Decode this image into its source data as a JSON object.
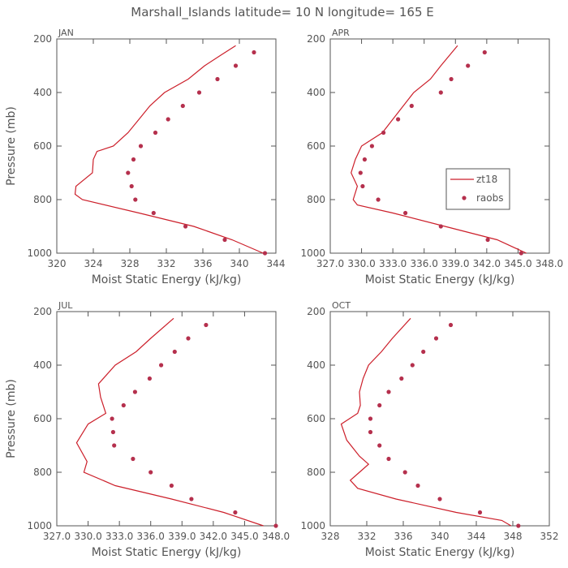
{
  "title": "Marshall_Islands  latitude= 10 N longitude= 165 E",
  "legend": {
    "model_label": "zt18",
    "obs_label": "raobs"
  },
  "colors": {
    "line": "#cc1f2a",
    "obs": "#b5304d",
    "axis": "#555555"
  },
  "chart_data": [
    {
      "type": "line",
      "panel": "JAN",
      "xlabel": "Moist Static Energy (kJ/kg)",
      "ylabel": "Pressure (mb)",
      "xlim": [
        320,
        344
      ],
      "ylim": [
        1000,
        200
      ],
      "x_ticks": [
        320,
        324,
        328,
        332,
        336,
        340,
        344
      ],
      "x_tick_labels": [
        "320",
        "324",
        "328",
        "332",
        "336",
        "340",
        "344"
      ],
      "y_ticks": [
        200,
        400,
        600,
        800,
        1000
      ],
      "y_tick_labels": [
        "200",
        "400",
        "600",
        "800",
        "1000"
      ],
      "series": [
        {
          "name": "zt18",
          "pressure": [
            225,
            260,
            300,
            350,
            400,
            450,
            500,
            550,
            600,
            620,
            650,
            700,
            750,
            780,
            800,
            850,
            900,
            950,
            1000
          ],
          "mse": [
            339.6,
            338.0,
            336.2,
            334.4,
            331.8,
            330.2,
            329.0,
            327.8,
            326.2,
            324.4,
            324.0,
            323.9,
            322.1,
            322.0,
            322.8,
            329.0,
            335.0,
            339.2,
            342.6
          ]
        },
        {
          "name": "raobs",
          "pressure": [
            250,
            300,
            350,
            400,
            450,
            500,
            550,
            600,
            650,
            700,
            750,
            800,
            850,
            900,
            950,
            1000
          ],
          "mse": [
            341.6,
            339.6,
            337.6,
            335.6,
            333.8,
            332.2,
            330.8,
            329.2,
            328.4,
            327.8,
            328.2,
            328.6,
            330.6,
            334.1,
            338.4,
            342.8
          ]
        }
      ]
    },
    {
      "type": "line",
      "panel": "APR",
      "xlabel": "Moist Static Energy (kJ/kg)",
      "ylabel": "",
      "xlim": [
        327.0,
        348.0
      ],
      "ylim": [
        1000,
        200
      ],
      "x_ticks": [
        327.0,
        330.0,
        333.0,
        336.0,
        339.0,
        342.0,
        345.0,
        348.0
      ],
      "x_tick_labels": [
        "327.0",
        "330.0",
        "333.0",
        "336.0",
        "339.0",
        "342.0",
        "345.0",
        "348.0"
      ],
      "y_ticks": [
        200,
        400,
        600,
        800,
        1000
      ],
      "y_tick_labels": [
        "200",
        "400",
        "600",
        "800",
        "1000"
      ],
      "series": [
        {
          "name": "zt18",
          "pressure": [
            225,
            300,
            350,
            400,
            450,
            500,
            550,
            580,
            600,
            650,
            700,
            750,
            800,
            820,
            850,
            900,
            950,
            1000
          ],
          "mse": [
            339.2,
            337.6,
            336.6,
            335.0,
            334.0,
            333.0,
            332.0,
            330.8,
            330.0,
            329.4,
            329.0,
            329.6,
            329.2,
            329.6,
            333.0,
            338.0,
            343.0,
            345.8
          ]
        },
        {
          "name": "raobs",
          "pressure": [
            250,
            300,
            350,
            400,
            450,
            500,
            550,
            600,
            650,
            700,
            750,
            800,
            850,
            900,
            950,
            1000
          ],
          "mse": [
            341.8,
            340.2,
            338.6,
            337.6,
            334.8,
            333.5,
            332.1,
            331.0,
            330.3,
            329.9,
            330.1,
            331.6,
            334.2,
            337.6,
            342.1,
            345.3
          ]
        }
      ]
    },
    {
      "type": "line",
      "panel": "JUL",
      "xlabel": "Moist Static Energy (kJ/kg)",
      "ylabel": "Pressure (mb)",
      "xlim": [
        327.0,
        348.0
      ],
      "ylim": [
        1000,
        200
      ],
      "x_ticks": [
        327.0,
        330.0,
        333.0,
        336.0,
        339.0,
        342.0,
        345.0,
        348.0
      ],
      "x_tick_labels": [
        "327.0",
        "330.0",
        "333.0",
        "336.0",
        "339.0",
        "342.0",
        "345.0",
        "348.0"
      ],
      "y_ticks": [
        200,
        400,
        600,
        800,
        1000
      ],
      "y_tick_labels": [
        "200",
        "400",
        "600",
        "800",
        "1000"
      ],
      "series": [
        {
          "name": "zt18",
          "pressure": [
            225,
            300,
            350,
            400,
            470,
            520,
            580,
            620,
            690,
            760,
            800,
            850,
            900,
            950,
            1000
          ],
          "mse": [
            338.2,
            336.0,
            334.6,
            332.6,
            331.0,
            331.2,
            331.7,
            330.0,
            328.9,
            329.9,
            329.6,
            332.6,
            338.0,
            343.0,
            346.8
          ]
        },
        {
          "name": "raobs",
          "pressure": [
            250,
            300,
            350,
            400,
            450,
            500,
            550,
            600,
            650,
            700,
            750,
            800,
            850,
            900,
            950,
            1000
          ],
          "mse": [
            341.3,
            339.6,
            338.3,
            337.0,
            335.9,
            334.5,
            333.4,
            332.3,
            332.4,
            332.5,
            334.3,
            336.0,
            338.0,
            339.9,
            344.1,
            348.0
          ]
        }
      ]
    },
    {
      "type": "line",
      "panel": "OCT",
      "xlabel": "Moist Static Energy (kJ/kg)",
      "ylabel": "",
      "xlim": [
        328,
        352
      ],
      "ylim": [
        1000,
        200
      ],
      "x_ticks": [
        328,
        332,
        336,
        340,
        344,
        348,
        352
      ],
      "x_tick_labels": [
        "328",
        "332",
        "336",
        "340",
        "344",
        "348",
        "352"
      ],
      "y_ticks": [
        200,
        400,
        600,
        800,
        1000
      ],
      "y_tick_labels": [
        "200",
        "400",
        "600",
        "800",
        "1000"
      ],
      "series": [
        {
          "name": "zt18",
          "pressure": [
            225,
            300,
            350,
            400,
            450,
            500,
            550,
            580,
            620,
            680,
            740,
            770,
            800,
            830,
            860,
            900,
            950,
            980,
            1000
          ],
          "mse": [
            336.8,
            334.8,
            333.6,
            332.2,
            331.6,
            331.2,
            331.3,
            331.0,
            329.2,
            329.8,
            331.2,
            332.2,
            331.2,
            330.2,
            331.0,
            335.2,
            341.8,
            346.8,
            347.8
          ]
        },
        {
          "name": "raobs",
          "pressure": [
            250,
            300,
            350,
            400,
            450,
            500,
            550,
            600,
            650,
            700,
            750,
            800,
            850,
            900,
            950,
            1000
          ],
          "mse": [
            341.2,
            339.6,
            338.2,
            337.0,
            335.8,
            334.4,
            333.4,
            332.4,
            332.4,
            333.4,
            334.4,
            336.2,
            337.6,
            340.0,
            344.4,
            348.6
          ]
        }
      ]
    }
  ]
}
